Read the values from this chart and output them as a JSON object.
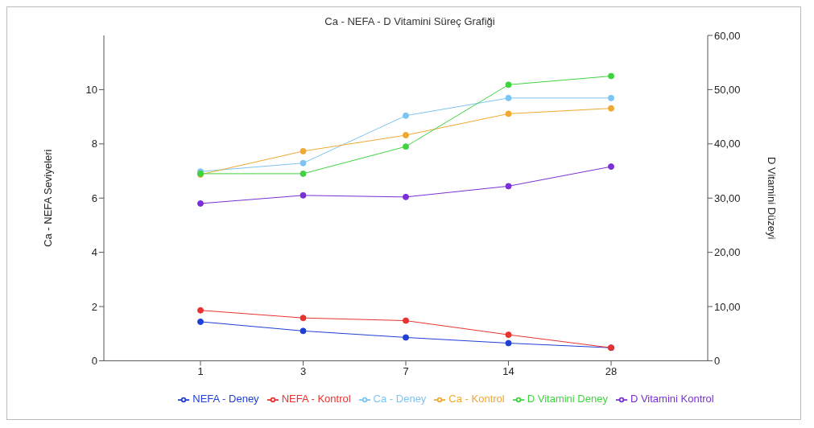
{
  "chart_data": {
    "type": "line",
    "title": "Ca - NEFA - D Vitamini Süreç Grafiği",
    "ylabel": "Ca - NEFA Seviyeleri",
    "y2label": "D Vitamini Düzeyi",
    "categories": [
      "1",
      "3",
      "7",
      "14",
      "28"
    ],
    "ylim": [
      0,
      12
    ],
    "yticks": [
      0,
      2,
      4,
      6,
      8,
      10
    ],
    "y2lim": [
      0,
      60
    ],
    "y2ticks": [
      {
        "value": 0,
        "label": "0"
      },
      {
        "value": 10,
        "label": "10,00"
      },
      {
        "value": 20,
        "label": "20,00"
      },
      {
        "value": 30,
        "label": "30,00"
      },
      {
        "value": 40,
        "label": "40,00"
      },
      {
        "value": 50,
        "label": "50,00"
      },
      {
        "value": 60,
        "label": "60,00"
      }
    ],
    "series": [
      {
        "name": "NEFA - Deney",
        "color": "#1f3fd6",
        "values": [
          1.44,
          1.1,
          0.86,
          0.65,
          0.48
        ]
      },
      {
        "name": "NEFA - Kontrol",
        "color": "#e8322f",
        "values": [
          1.86,
          1.58,
          1.48,
          0.96,
          0.48
        ]
      },
      {
        "name": "Ca - Deney",
        "color": "#7cc4f2",
        "values": [
          6.98,
          7.29,
          9.04,
          9.69,
          9.69
        ]
      },
      {
        "name": "Ca - Kontrol",
        "color": "#f0a830",
        "values": [
          6.87,
          7.73,
          8.32,
          9.11,
          9.31
        ]
      },
      {
        "name": "D Vitamini Deney",
        "color": "#3fd43f",
        "axis": "y2",
        "values": [
          34.5,
          34.5,
          39.5,
          50.9,
          52.5
        ]
      },
      {
        "name": "D Vitamini Kontrol",
        "color": "#7b2fd6",
        "axis": "y2",
        "values": [
          29.0,
          30.5,
          30.2,
          32.2,
          35.8
        ]
      }
    ],
    "legend": "bottom",
    "marker": "circle",
    "line_style": "solid"
  }
}
